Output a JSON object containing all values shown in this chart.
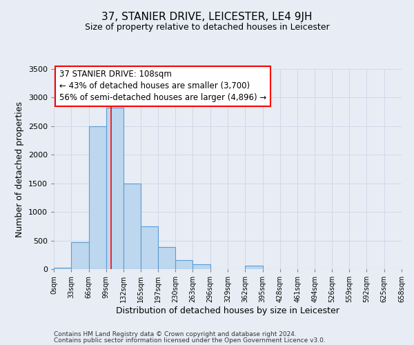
{
  "title": "37, STANIER DRIVE, LEICESTER, LE4 9JH",
  "subtitle": "Size of property relative to detached houses in Leicester",
  "xlabel": "Distribution of detached houses by size in Leicester",
  "ylabel": "Number of detached properties",
  "bin_edges": [
    0,
    33,
    66,
    99,
    132,
    165,
    197,
    230,
    263,
    296,
    329,
    362,
    395,
    428,
    461,
    494,
    526,
    559,
    592,
    625,
    658
  ],
  "bin_labels": [
    "0sqm",
    "33sqm",
    "66sqm",
    "99sqm",
    "132sqm",
    "165sqm",
    "197sqm",
    "230sqm",
    "263sqm",
    "296sqm",
    "329sqm",
    "362sqm",
    "395sqm",
    "428sqm",
    "461sqm",
    "494sqm",
    "526sqm",
    "559sqm",
    "592sqm",
    "625sqm",
    "658sqm"
  ],
  "counts": [
    30,
    470,
    2500,
    2830,
    1500,
    750,
    390,
    155,
    80,
    0,
    0,
    55,
    0,
    0,
    0,
    0,
    0,
    0,
    0,
    0
  ],
  "bar_color": "#bdd7ee",
  "bar_edge_color": "#5b9bd5",
  "property_line_x": 108,
  "property_line_color": "red",
  "annotation_title": "37 STANIER DRIVE: 108sqm",
  "annotation_line1": "← 43% of detached houses are smaller (3,700)",
  "annotation_line2": "56% of semi-detached houses are larger (4,896) →",
  "annotation_box_color": "white",
  "annotation_box_edge_color": "red",
  "ylim": [
    0,
    3500
  ],
  "yticks": [
    0,
    500,
    1000,
    1500,
    2000,
    2500,
    3000,
    3500
  ],
  "grid_color": "#d0d8e8",
  "background_color": "#e8edf5",
  "footnote1": "Contains HM Land Registry data © Crown copyright and database right 2024.",
  "footnote2": "Contains public sector information licensed under the Open Government Licence v3.0."
}
